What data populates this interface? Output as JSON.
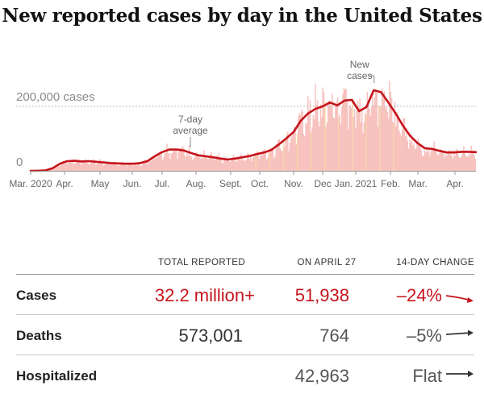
{
  "title": "New reported cases by day in the United States",
  "chart_data": {
    "type": "area",
    "y_axis": {
      "ticks": [
        {
          "value": 200000,
          "label": "200,000 cases"
        },
        {
          "value": 0,
          "label": "0"
        }
      ],
      "ylim": [
        0,
        270000
      ]
    },
    "x_axis": {
      "labels": [
        "Mar. 2020",
        "Apr.",
        "May",
        "Jun.",
        "Jul.",
        "Aug.",
        "Sept.",
        "Oct.",
        "Nov.",
        "Dec",
        "Jan. 2021",
        "Feb.",
        "Mar.",
        "Apr."
      ]
    },
    "series": [
      {
        "x": [
          0,
          1,
          2,
          3,
          4,
          5,
          6,
          7,
          8,
          9,
          10,
          11,
          12,
          13,
          14,
          15,
          16,
          17,
          18,
          19,
          20,
          21,
          22,
          23,
          24,
          25,
          26,
          27,
          28,
          29,
          30,
          31,
          32,
          33,
          34,
          35,
          36,
          37,
          38,
          39,
          40,
          41,
          42,
          43,
          44,
          45,
          46,
          47,
          48,
          49,
          50,
          51,
          52,
          53,
          54,
          55,
          56,
          57,
          58,
          59,
          60,
          61
        ],
        "values": [
          0,
          200,
          1000,
          8000,
          22000,
          30000,
          31000,
          29000,
          30000,
          28000,
          26000,
          24000,
          23000,
          22000,
          22000,
          24000,
          30000,
          45000,
          58000,
          66000,
          66000,
          63000,
          55000,
          48000,
          45000,
          42000,
          38000,
          35000,
          38000,
          42000,
          46000,
          52000,
          57000,
          65000,
          82000,
          100000,
          120000,
          155000,
          178000,
          192000,
          200000,
          212000,
          203000,
          218000,
          220000,
          185000,
          198000,
          250000,
          244000,
          212000,
          178000,
          140000,
          108000,
          86000,
          70000,
          68000,
          62000,
          57000,
          57000,
          59000,
          59000,
          58000
        ]
      }
    ],
    "annotations": [
      {
        "text": "7-day average",
        "lines": [
          "7-day",
          "average"
        ],
        "x": 21,
        "y": 66000
      },
      {
        "text": "New cases",
        "lines": [
          "New",
          "cases"
        ],
        "x": 46.5,
        "y": 240000
      }
    ]
  },
  "table": {
    "headers": [
      "TOTAL REPORTED",
      "ON APRIL 27",
      "14-DAY CHANGE"
    ],
    "rows": [
      {
        "label": "Cases",
        "total": "32.2 million+",
        "today": "51,938",
        "change": "–24%",
        "trend": "down"
      },
      {
        "label": "Deaths",
        "total": "573,001",
        "today": "764",
        "change": "–5%",
        "trend": "flat"
      },
      {
        "label": "Hospitalized",
        "total": "",
        "today": "42,963",
        "change": "Flat",
        "trend": "flat"
      }
    ]
  },
  "colors": {
    "accent": "#c5141c",
    "bar": "#f7c1bd",
    "bar_highlight": "#f5d6a8",
    "text": "#121212"
  }
}
